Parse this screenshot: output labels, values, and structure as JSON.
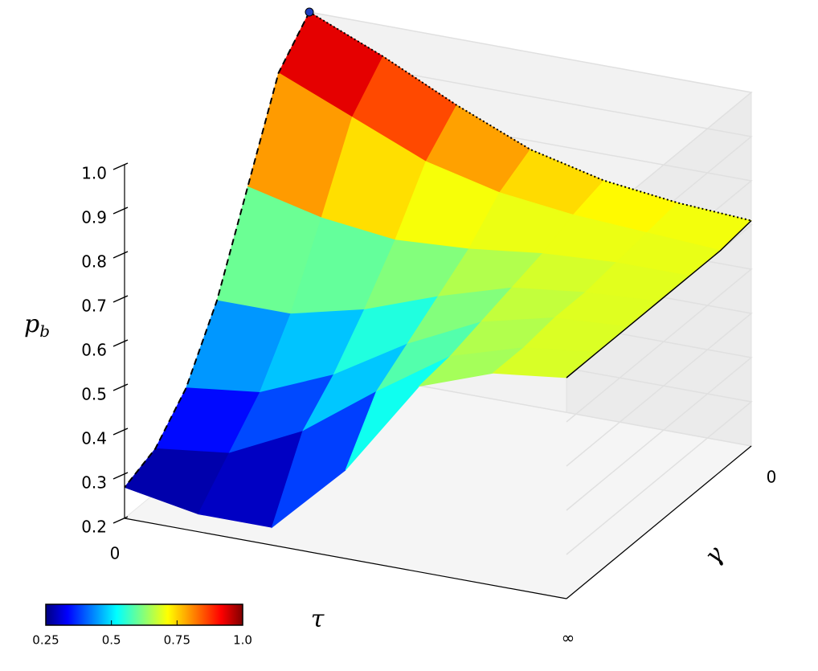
{
  "chart_data": {
    "type": "surface",
    "xlabel": "τ",
    "ylabel": "γ",
    "zlabel": {
      "symbol": "p",
      "subscript": "b"
    },
    "xticks": [
      "0",
      "∞"
    ],
    "yticks": [
      "0"
    ],
    "zlim": [
      0.2,
      1.0
    ],
    "zticks": [
      0.2,
      0.3,
      0.4,
      0.5,
      0.6,
      0.7,
      0.8,
      0.9,
      {
        "value": 1.0,
        "label": "1.0"
      }
    ],
    "z": [
      [
        1.0,
        0.93,
        0.85,
        0.78,
        0.74,
        0.72,
        0.71
      ],
      [
        0.92,
        0.85,
        0.78,
        0.74,
        0.72,
        0.71,
        0.7
      ],
      [
        0.72,
        0.68,
        0.66,
        0.67,
        0.69,
        0.7,
        0.7
      ],
      [
        0.52,
        0.52,
        0.56,
        0.62,
        0.67,
        0.69,
        0.7
      ],
      [
        0.38,
        0.4,
        0.47,
        0.57,
        0.65,
        0.69,
        0.7
      ],
      [
        0.3,
        0.32,
        0.4,
        0.52,
        0.63,
        0.68,
        0.7
      ],
      [
        0.27,
        0.24,
        0.24,
        0.4,
        0.62,
        0.68,
        0.7
      ]
    ],
    "colormap": "jet",
    "colorbar_ticks": [
      0.25,
      0.5,
      0.75,
      {
        "value": 1.0,
        "label": "1.0"
      }
    ]
  }
}
